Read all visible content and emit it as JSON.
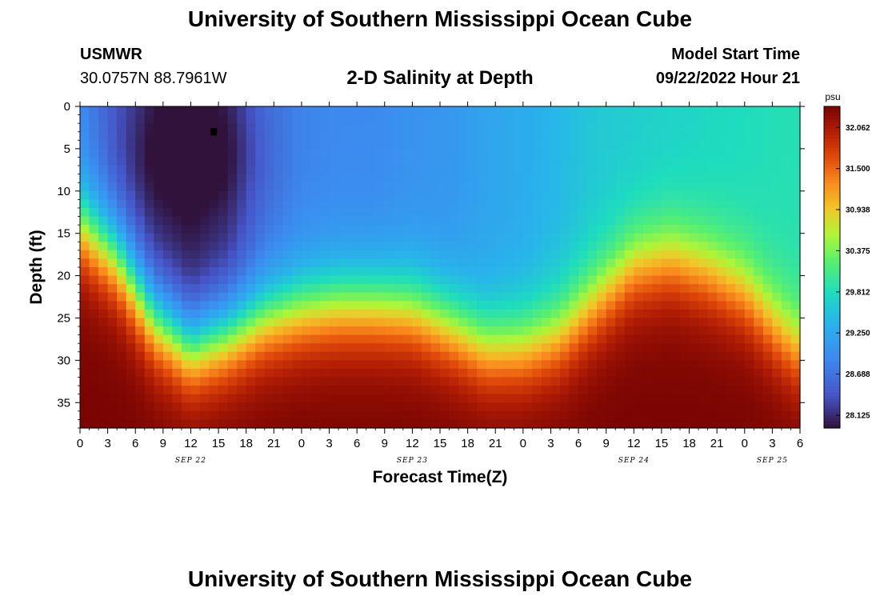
{
  "header": {
    "title": "University of Southern Mississippi Ocean Cube",
    "station": "USMWR",
    "coords": "30.0757N  88.7961W",
    "subtitle": "2-D Salinity at Depth",
    "model_label": "Model Start Time",
    "model_time": "09/22/2022 Hour 21"
  },
  "footer": {
    "title": "University of Southern Mississippi Ocean Cube"
  },
  "colorbar": {
    "unit": "psu",
    "ticks": [
      "32.062",
      "31.500",
      "30.938",
      "30.375",
      "29.812",
      "29.250",
      "28.688",
      "28.125"
    ]
  },
  "chart_data": {
    "type": "heatmap",
    "title": "2-D Salinity at Depth",
    "xlabel": "Forecast Time(Z)",
    "ylabel": "Depth (ft)",
    "x_tick_labels": [
      "0",
      "3",
      "6",
      "9",
      "12",
      "15",
      "18",
      "21",
      "0",
      "3",
      "6",
      "9",
      "12",
      "15",
      "18",
      "21",
      "0",
      "3",
      "6",
      "9",
      "12",
      "15",
      "18",
      "21",
      "0",
      "3",
      "6"
    ],
    "x_range_hours": [
      0,
      78
    ],
    "day_labels": [
      {
        "label": "SEP 22",
        "hour": 12
      },
      {
        "label": "SEP 23",
        "hour": 36
      },
      {
        "label": "SEP 24",
        "hour": 60
      },
      {
        "label": "SEP 25",
        "hour": 75
      }
    ],
    "y_tick_labels": [
      "0",
      "5",
      "10",
      "15",
      "20",
      "25",
      "30",
      "35"
    ],
    "y_ticks": [
      0,
      5,
      10,
      15,
      20,
      25,
      30,
      35
    ],
    "ylim": [
      0,
      38
    ],
    "y_inverted": true,
    "color_range": [
      27.95,
      32.35
    ],
    "color_unit": "psu",
    "interface_depth_ft": {
      "hours": [
        0,
        4,
        8,
        12,
        16,
        20,
        24,
        28,
        32,
        36,
        40,
        44,
        48,
        52,
        56,
        60,
        64,
        68,
        72,
        76,
        78
      ],
      "depths": [
        14,
        18,
        25,
        28.5,
        27,
        25,
        24,
        23.5,
        23.5,
        24,
        26,
        28.5,
        28.5,
        27,
        23,
        19,
        18,
        19.5,
        22,
        27,
        29
      ]
    },
    "surface_salinity_psu": {
      "hours": [
        0,
        4,
        8,
        12,
        16,
        20,
        24,
        28,
        32,
        36,
        40,
        44,
        48,
        52,
        56,
        60,
        64,
        68,
        72,
        76,
        78
      ],
      "values": [
        28.9,
        28.4,
        28.05,
        27.95,
        28.1,
        28.6,
        28.85,
        28.9,
        28.9,
        29.0,
        29.05,
        29.2,
        29.3,
        29.45,
        29.6,
        29.65,
        29.7,
        29.75,
        29.8,
        29.85,
        29.85
      ]
    },
    "bottom_salinity_psu": 32.35,
    "marker": {
      "hour": 14.5,
      "depth_ft": 3
    }
  }
}
